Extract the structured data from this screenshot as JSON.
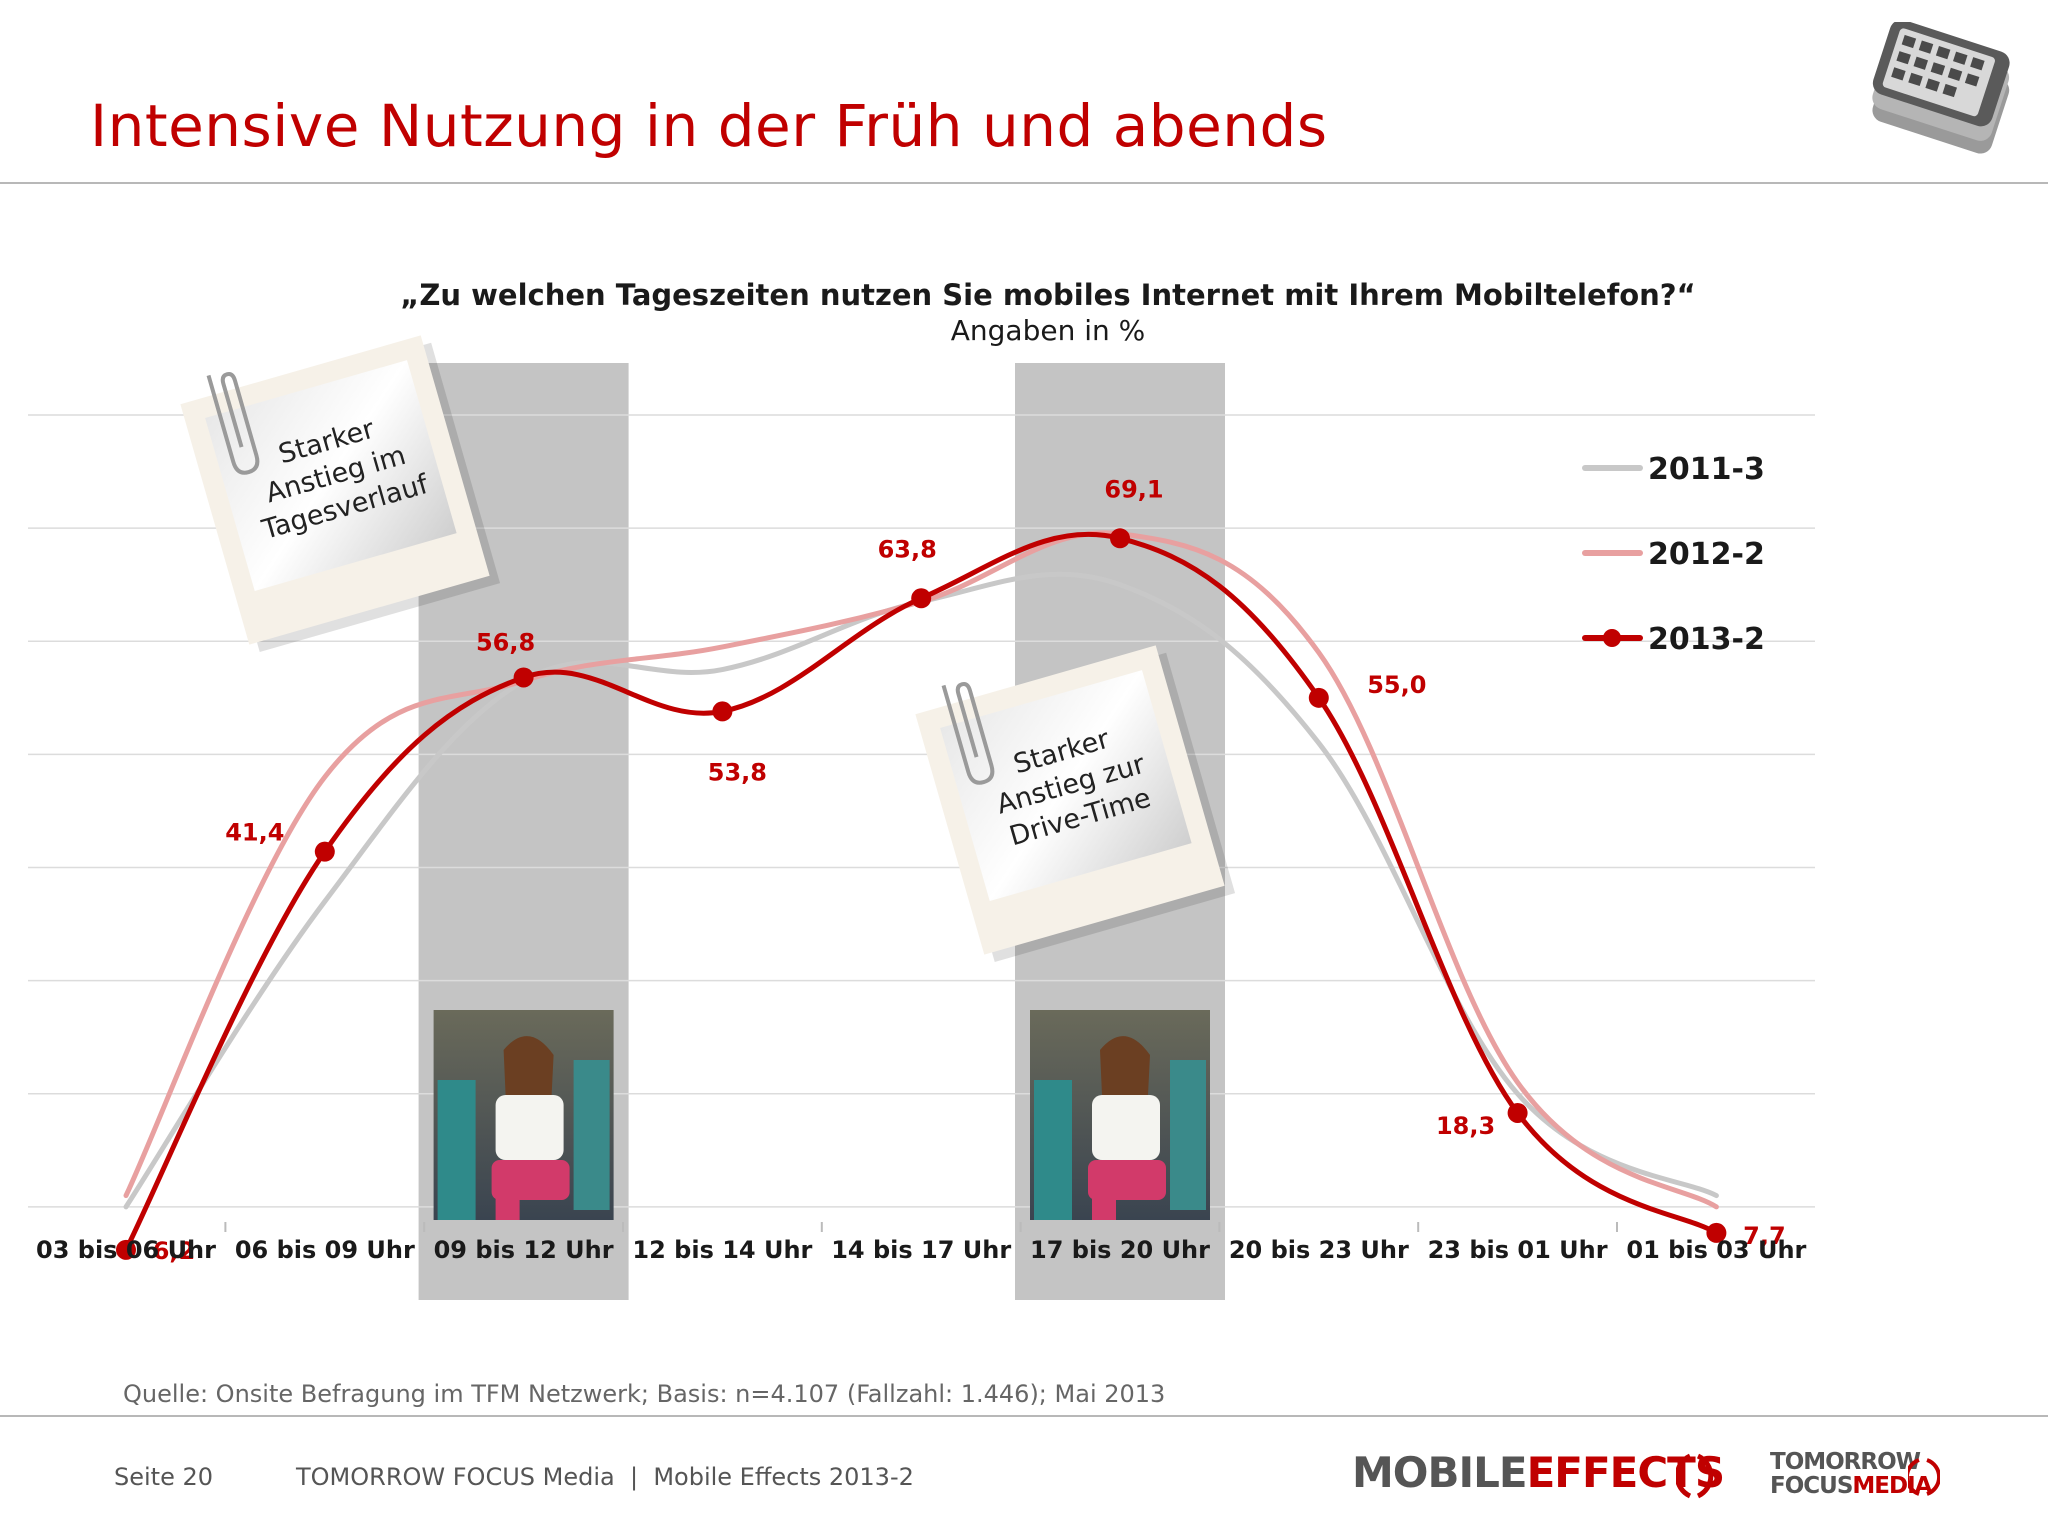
{
  "header": {
    "title": "Intensive Nutzung in der Früh und abends"
  },
  "chart_data": {
    "type": "line",
    "title": "„Zu welchen Tageszeiten nutzen Sie mobiles Internet mit Ihrem Mobiltelefon?“",
    "subtitle": "Angaben in %",
    "categories": [
      "03 bis 06 Uhr",
      "06 bis 09 Uhr",
      "09 bis 12 Uhr",
      "12 bis 14 Uhr",
      "14 bis 17 Uhr",
      "17 bis 20 Uhr",
      "20 bis 23 Uhr",
      "23 bis 01 Uhr",
      "01 bis 03 Uhr"
    ],
    "series": [
      {
        "name": "2011-3",
        "color": "#c8c8c8",
        "values": [
          10,
          37,
          56.5,
          57.5,
          63.5,
          65,
          51,
          20,
          11
        ],
        "markers": false,
        "labels": false
      },
      {
        "name": "2012-2",
        "color": "#e8a0a0",
        "values": [
          11,
          48,
          56.5,
          59.5,
          63.5,
          69.5,
          59,
          21,
          10
        ],
        "markers": false,
        "labels": false
      },
      {
        "name": "2013-2",
        "color": "#c00000",
        "values": [
          6.2,
          41.4,
          56.8,
          53.8,
          63.8,
          69.1,
          55.0,
          18.3,
          7.7
        ],
        "markers": true,
        "labels": true
      }
    ],
    "data_labels": [
      "6,2",
      "41,4",
      "56,8",
      "53,8",
      "63,8",
      "69,1",
      "55,0",
      "18,3",
      "7,7"
    ],
    "ylim": [
      0,
      80
    ],
    "grid": true,
    "legend_position": "top-right",
    "highlight_categories": [
      "09 bis 12 Uhr",
      "17 bis 20 Uhr"
    ],
    "annotations": [
      {
        "text": [
          "Starker",
          "Anstieg im",
          "Tagesverlauf"
        ]
      },
      {
        "text": [
          "Starker",
          "Anstieg zur",
          "Drive-Time"
        ]
      }
    ]
  },
  "footer": {
    "source": "Quelle: Onsite Befragung im TFM Netzwerk; Basis: n=4.107 (Fallzahl: 1.446); Mai 2013",
    "page": "Seite 20",
    "publication": "TOMORROW FOCUS Media  |  Mobile Effects 2013-2",
    "brand_part1": "MOBILE",
    "brand_part2": "EFFECTS",
    "tfm_line1": "TOMORROW",
    "tfm_line2a": "FOCUS",
    "tfm_line2b": "MEDIA"
  }
}
